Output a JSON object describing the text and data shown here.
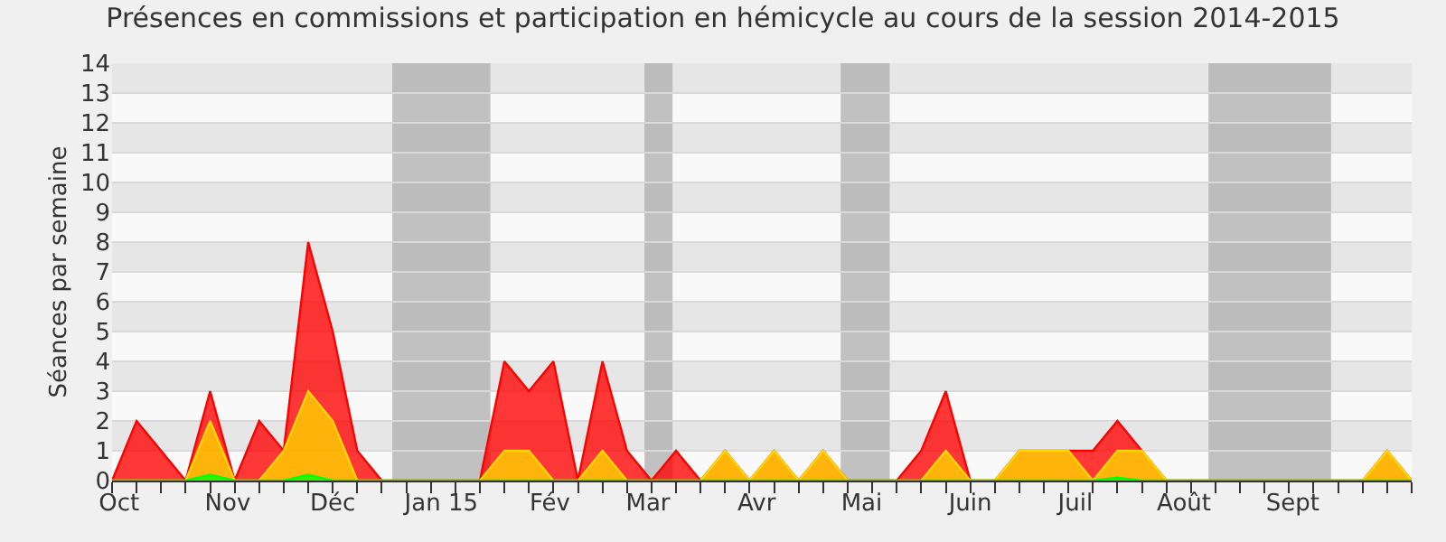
{
  "chart_data": {
    "type": "area",
    "title": "Présences en commissions et participation en hémicycle au cours de la session 2014-2015",
    "ylabel": "Séances par semaine",
    "x": [
      "2014-09-29",
      "2014-10-06",
      "2014-10-13",
      "2014-10-20",
      "2014-10-27",
      "2014-11-03",
      "2014-11-10",
      "2014-11-17",
      "2014-11-24",
      "2014-12-01",
      "2014-12-08",
      "2014-12-15",
      "2014-12-22",
      "2014-12-29",
      "2015-01-05",
      "2015-01-12",
      "2015-01-19",
      "2015-01-26",
      "2015-02-02",
      "2015-02-09",
      "2015-02-16",
      "2015-02-23",
      "2015-03-02",
      "2015-03-09",
      "2015-03-16",
      "2015-03-23",
      "2015-03-30",
      "2015-04-06",
      "2015-04-13",
      "2015-04-20",
      "2015-04-27",
      "2015-05-04",
      "2015-05-11",
      "2015-05-18",
      "2015-05-25",
      "2015-06-01",
      "2015-06-08",
      "2015-06-15",
      "2015-06-22",
      "2015-06-29",
      "2015-07-06",
      "2015-07-13",
      "2015-07-20",
      "2015-07-27",
      "2015-08-03",
      "2015-08-10",
      "2015-08-17",
      "2015-08-24",
      "2015-08-31",
      "2015-09-07",
      "2015-09-14",
      "2015-09-21",
      "2015-09-28",
      "2015-10-05"
    ],
    "series": [
      {
        "color": "#ff0000",
        "values": [
          0,
          2,
          1,
          0,
          3,
          0,
          2,
          1,
          8,
          5,
          1,
          0,
          0,
          0,
          0,
          0,
          4,
          3,
          4,
          0,
          4,
          1,
          0,
          1,
          0,
          1,
          0,
          1,
          0,
          1,
          0,
          0,
          0,
          1,
          3,
          0,
          0,
          1,
          1,
          1,
          1,
          2,
          1,
          0,
          0,
          0,
          0,
          0,
          0,
          0,
          0,
          0,
          1,
          0
        ]
      },
      {
        "color": "#ffd700",
        "values": [
          0,
          0,
          0,
          0,
          2,
          0,
          0,
          1,
          3,
          2,
          0,
          0,
          0,
          0,
          0,
          0,
          1,
          1,
          0,
          0,
          1,
          0,
          0,
          0,
          0,
          1,
          0,
          1,
          0,
          1,
          0,
          0,
          0,
          0,
          1,
          0,
          0,
          1,
          1,
          1,
          0,
          1,
          1,
          0,
          0,
          0,
          0,
          0,
          0,
          0,
          0,
          0,
          1,
          0
        ]
      },
      {
        "color": "#00ff00",
        "values": [
          0,
          0,
          0,
          0,
          0.2,
          0,
          0,
          0,
          0.2,
          0,
          0,
          0,
          0,
          0,
          0,
          0,
          0,
          0,
          0,
          0,
          0,
          0,
          0,
          0,
          0,
          0,
          0,
          0,
          0,
          0,
          0,
          0,
          0,
          0,
          0,
          0,
          0,
          0,
          0,
          0,
          0,
          0.1,
          0,
          0,
          0,
          0,
          0,
          0,
          0,
          0,
          0,
          0,
          0,
          0
        ]
      }
    ],
    "xlim": [
      "2014-09-29",
      "2015-10-05"
    ],
    "xticks": [
      {
        "value": "2014-10-01",
        "label": "Oct"
      },
      {
        "value": "2014-11-01",
        "label": "Nov"
      },
      {
        "value": "2014-12-01",
        "label": "Déc"
      },
      {
        "value": "2015-01-01",
        "label": "Jan 15"
      },
      {
        "value": "2015-02-01",
        "label": "Fév"
      },
      {
        "value": "2015-03-01",
        "label": "Mar"
      },
      {
        "value": "2015-04-01",
        "label": "Avr"
      },
      {
        "value": "2015-05-01",
        "label": "Mai"
      },
      {
        "value": "2015-06-01",
        "label": "Juin"
      },
      {
        "value": "2015-07-01",
        "label": "Juil"
      },
      {
        "value": "2015-08-01",
        "label": "Août"
      },
      {
        "value": "2015-09-01",
        "label": "Sept"
      }
    ],
    "ylim": [
      0,
      14
    ],
    "yticks": [
      0,
      1,
      2,
      3,
      4,
      5,
      6,
      7,
      8,
      9,
      10,
      11,
      12,
      13,
      14
    ],
    "bands": [
      {
        "axis": "x",
        "from": "2014-12-18",
        "to": "2015-01-15",
        "color": "#aaaaaa"
      },
      {
        "axis": "x",
        "from": "2015-02-28",
        "to": "2015-03-08",
        "color": "#aaaaaa"
      },
      {
        "axis": "x",
        "from": "2015-04-25",
        "to": "2015-05-09",
        "color": "#aaaaaa"
      },
      {
        "axis": "x",
        "from": "2015-08-08",
        "to": "2015-09-12",
        "color": "#aaaaaa"
      }
    ],
    "grid": "y"
  }
}
